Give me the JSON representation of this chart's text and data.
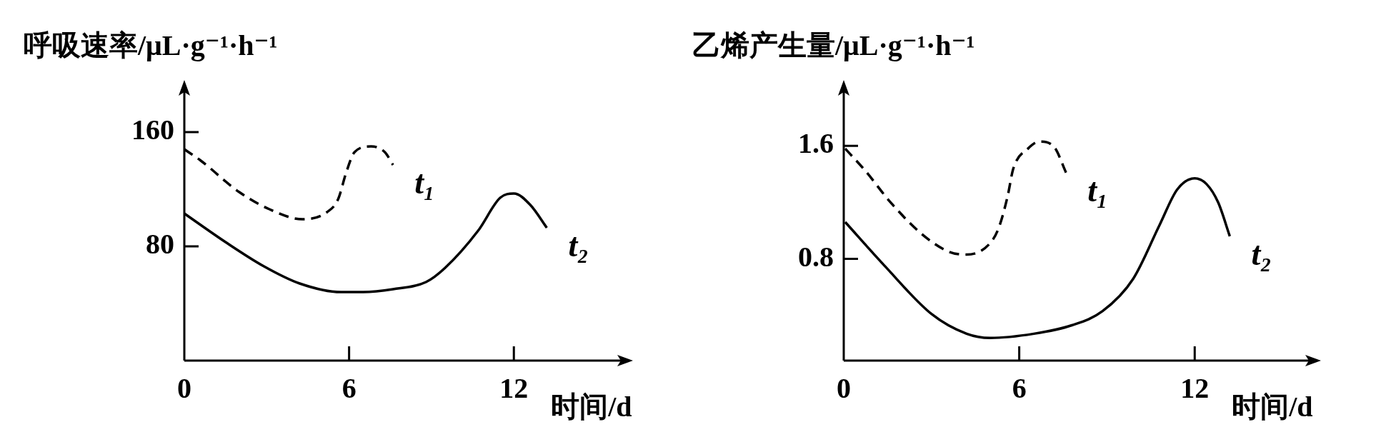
{
  "chart_data": [
    {
      "type": "line",
      "ylabel": "呼吸速率/μL·g⁻¹·h⁻¹",
      "xlabel": "时间/d",
      "xlim": [
        0,
        16
      ],
      "xticks": [
        0,
        6,
        12
      ],
      "ylim": [
        0,
        190
      ],
      "yticks": [
        80,
        160
      ],
      "grid": false,
      "legend": false,
      "marker": "none",
      "series": [
        {
          "name": "t₁",
          "color": "#000000",
          "line_style": "dashed",
          "x": [
            0,
            0.6,
            2,
            3.1,
            4.3,
            5.2,
            5.6,
            5.9,
            6.2,
            6.8,
            7.3,
            7.6
          ],
          "values": [
            148,
            140,
            118,
            106,
            99,
            104,
            113,
            132,
            146,
            150,
            146,
            137
          ]
        },
        {
          "name": "t₂",
          "color": "#000000",
          "line_style": "solid",
          "x": [
            0,
            1.5,
            2.9,
            4.2,
            5.7,
            6.5,
            7.6,
            8.8,
            9.5,
            10.7,
            11.5,
            12,
            12.6,
            13.2
          ],
          "values": [
            103,
            83,
            66,
            54,
            48,
            48,
            50,
            55,
            65,
            91,
            114,
            117,
            109,
            93
          ]
        }
      ]
    },
    {
      "type": "line",
      "ylabel": "乙烯产生量/μL·g⁻¹·h⁻¹",
      "xlabel": "时间/d",
      "xlim": [
        0,
        16
      ],
      "xticks": [
        0,
        6,
        12
      ],
      "ylim": [
        0.08,
        2.0
      ],
      "yticks": [
        0.8,
        1.6
      ],
      "grid": false,
      "legend": false,
      "marker": "none",
      "series": [
        {
          "name": "t₁",
          "color": "#000000",
          "line_style": "dashed",
          "x": [
            0.05,
            0.75,
            1.6,
            2.7,
            3.6,
            4.2,
            5.0,
            5.3,
            5.6,
            5.8,
            6.3,
            6.7,
            7.2,
            7.6
          ],
          "values": [
            1.58,
            1.42,
            1.2,
            0.97,
            0.85,
            0.83,
            0.91,
            1.02,
            1.24,
            1.44,
            1.58,
            1.63,
            1.59,
            1.41
          ]
        },
        {
          "name": "t₂",
          "color": "#000000",
          "line_style": "solid",
          "x": [
            0.05,
            1.4,
            3.0,
            4.2,
            5.0,
            6.5,
            7.8,
            8.85,
            9.9,
            10.8,
            11.4,
            12,
            12.4,
            12.8,
            13.2
          ],
          "values": [
            1.06,
            0.75,
            0.41,
            0.27,
            0.24,
            0.27,
            0.33,
            0.43,
            0.66,
            1.04,
            1.29,
            1.37,
            1.33,
            1.2,
            0.96
          ]
        }
      ]
    }
  ]
}
